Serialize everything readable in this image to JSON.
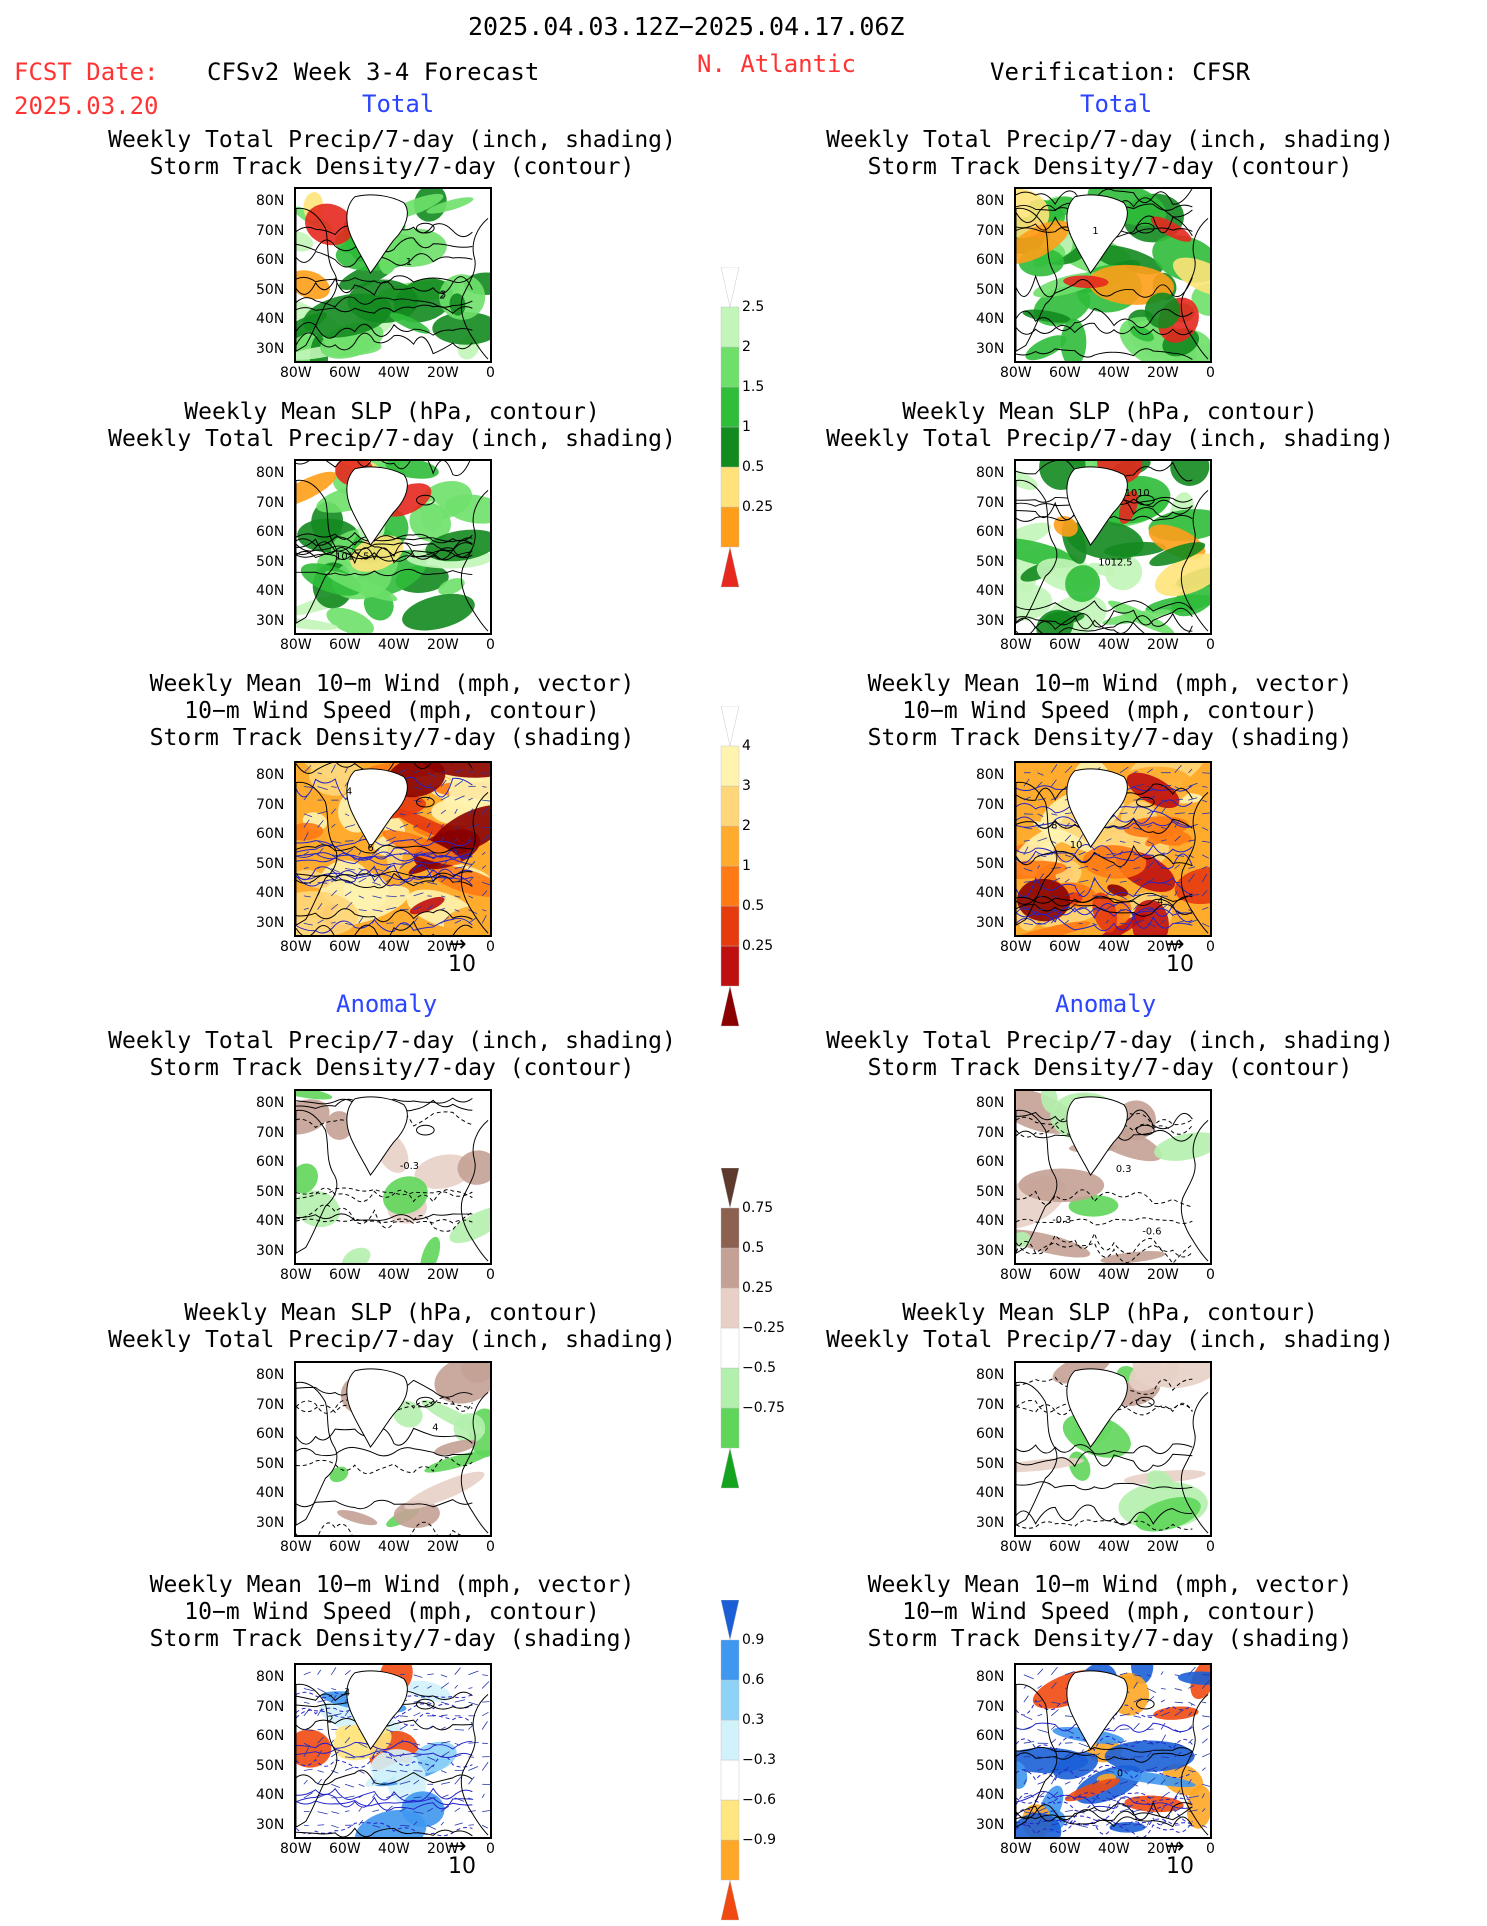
{
  "header": {
    "period": "2025.04.03.12Z−2025.04.17.06Z",
    "fcst_label": "FCST Date:",
    "fcst_date": "2025.03.20",
    "model": "CFSv2 Week 3-4 Forecast",
    "region": "N. Atlantic",
    "verification": "Verification: CFSR"
  },
  "sections": {
    "total": "Total",
    "anomaly": "Anomaly"
  },
  "titles": {
    "precip_track": [
      "Weekly Total Precip/7-day (inch, shading)",
      "Storm Track Density/7-day (contour)"
    ],
    "slp_precip": [
      "Weekly Mean SLP (hPa, contour)",
      "Weekly Total Precip/7-day (inch, shading)"
    ],
    "wind_track": [
      "Weekly Mean 10−m Wind (mph, vector)",
      "10−m Wind Speed (mph, contour)",
      "Storm Track Density/7-day (shading)"
    ]
  },
  "axes": {
    "lat": [
      "80N",
      "70N",
      "60N",
      "50N",
      "40N",
      "30N"
    ],
    "lon": [
      "80W",
      "60W",
      "40W",
      "20W",
      "0"
    ]
  },
  "vector_ref": "10",
  "colorbars": {
    "precip_total": [
      "2.5",
      "2",
      "1.5",
      "1",
      "0.5",
      "0.25"
    ],
    "track_total": [
      "4",
      "3",
      "2",
      "1",
      "0.5",
      "0.25"
    ],
    "precip_anom": [
      "0.75",
      "0.5",
      "0.25",
      "−0.25",
      "−0.5",
      "−0.75"
    ],
    "track_anom": [
      "0.9",
      "0.6",
      "0.3",
      "−0.3",
      "−0.6",
      "−0.9"
    ]
  },
  "contour_labels": {
    "fcst_p1": [
      "3",
      "2",
      "1"
    ],
    "fcst_p2": [
      "1017.5"
    ],
    "fcst_p3": [
      "6",
      "4"
    ],
    "fcst_p4": [
      "-0.3"
    ],
    "fcst_p5": [
      "4"
    ],
    "fcst_p6": [
      "2",
      "4"
    ],
    "obs_p1": [
      "1"
    ],
    "obs_p2": [
      "1010",
      "1012.5"
    ],
    "obs_p3": [
      "4",
      "8",
      "10"
    ],
    "obs_p4": [
      "-0.3",
      "-0.6",
      "0.3"
    ],
    "obs_p6": [
      "0"
    ]
  },
  "colors": {
    "red_text": "#ff3333",
    "blue_text": "#2b44ff",
    "precip_scale": [
      "#c2f5b8",
      "#6ee06a",
      "#2fbd3a",
      "#138a1f",
      "#ffe37a",
      "#ff9e1a",
      "#e6281e"
    ],
    "track_scale": [
      "#fff3b0",
      "#ffd67a",
      "#ffac2e",
      "#ff7a14",
      "#e63a0f",
      "#bf1010",
      "#8a0000"
    ],
    "precip_anom_scale": [
      "#5e3a2e",
      "#8c6150",
      "#c4a195",
      "#e8d0c7",
      "#ffffff",
      "#b4f0ad",
      "#5fd65a",
      "#16a31f"
    ],
    "track_anom_scale": [
      "#1b5fd6",
      "#3f97f0",
      "#8ed3f7",
      "#d2f2fb",
      "#ffffff",
      "#ffe680",
      "#ffa726",
      "#f04a12"
    ]
  }
}
